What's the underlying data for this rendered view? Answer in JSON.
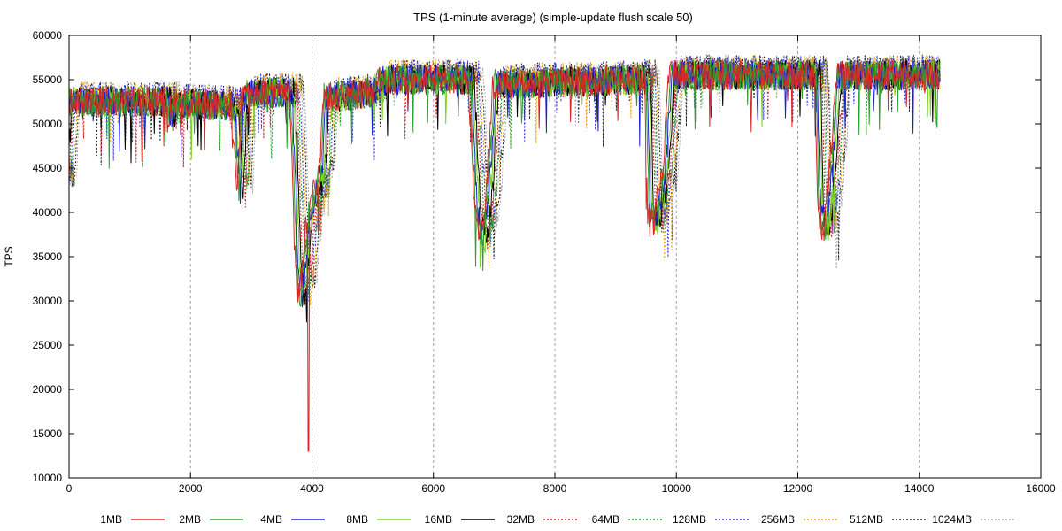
{
  "chart_data": {
    "type": "line",
    "title": "TPS (1-minute average) (simple-update flush scale 50)",
    "xlabel": "",
    "ylabel": "TPS",
    "xlim": [
      0,
      16000
    ],
    "ylim": [
      10000,
      60000
    ],
    "x_ticks": [
      0,
      2000,
      4000,
      6000,
      8000,
      10000,
      12000,
      14000,
      16000
    ],
    "y_ticks": [
      10000,
      15000,
      20000,
      25000,
      30000,
      35000,
      40000,
      45000,
      50000,
      55000,
      60000
    ],
    "grid": "vertical",
    "legend_position": "bottom",
    "series": [
      {
        "name": "1MB",
        "color": "#d62728",
        "dash": "solid",
        "seed": 1
      },
      {
        "name": "2MB",
        "color": "#2ca02c",
        "dash": "solid",
        "seed": 2
      },
      {
        "name": "4MB",
        "color": "#1f1fd6",
        "dash": "solid",
        "seed": 3
      },
      {
        "name": "8MB",
        "color": "#7ed321",
        "dash": "solid",
        "seed": 4
      },
      {
        "name": "16MB",
        "color": "#000000",
        "dash": "solid",
        "seed": 5
      },
      {
        "name": "32MB",
        "color": "#e01b24",
        "dash": "dotted",
        "seed": 6
      },
      {
        "name": "64MB",
        "color": "#1aa01a",
        "dash": "dotted",
        "seed": 7
      },
      {
        "name": "128MB",
        "color": "#3a3ae0",
        "dash": "dotted",
        "seed": 8
      },
      {
        "name": "256MB",
        "color": "#f0a000",
        "dash": "dotted",
        "seed": 9
      },
      {
        "name": "512MB",
        "color": "#222222",
        "dash": "dotted",
        "seed": 10
      },
      {
        "name": "1024MB",
        "color": "#aaaaaa",
        "dash": "dotted",
        "seed": 11
      }
    ],
    "profile": [
      [
        0,
        44000
      ],
      [
        60,
        52500
      ],
      [
        1700,
        52500
      ],
      [
        1750,
        50500
      ],
      [
        1800,
        52300
      ],
      [
        2800,
        52000
      ],
      [
        2900,
        42000
      ],
      [
        2950,
        52500
      ],
      [
        3000,
        53500
      ],
      [
        3750,
        53500
      ],
      [
        3850,
        34000
      ],
      [
        3900,
        30000
      ],
      [
        3950,
        33000
      ],
      [
        4050,
        40000
      ],
      [
        4250,
        45000
      ],
      [
        4300,
        53000
      ],
      [
        5100,
        53500
      ],
      [
        5200,
        55000
      ],
      [
        6700,
        55000
      ],
      [
        6800,
        40000
      ],
      [
        6900,
        37000
      ],
      [
        7000,
        43000
      ],
      [
        7100,
        54500
      ],
      [
        9600,
        55000
      ],
      [
        9650,
        40000
      ],
      [
        9750,
        39000
      ],
      [
        9900,
        45000
      ],
      [
        10000,
        55500
      ],
      [
        12400,
        55500
      ],
      [
        12450,
        40000
      ],
      [
        12550,
        38000
      ],
      [
        12650,
        45000
      ],
      [
        12750,
        55500
      ],
      [
        14350,
        55500
      ]
    ]
  }
}
